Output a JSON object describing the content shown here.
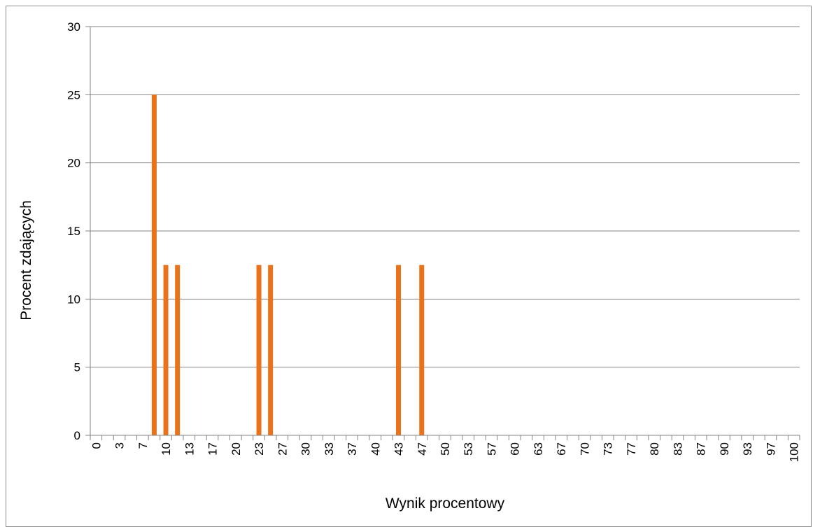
{
  "chart_data": {
    "type": "bar",
    "title": "",
    "xlabel": "Wynik procentowy",
    "ylabel": "Procent zdających",
    "ylim": [
      0,
      30
    ],
    "yticks": [
      0,
      5,
      10,
      15,
      20,
      25,
      30
    ],
    "grid": true,
    "legend": "none",
    "bar_color": "#E8731A",
    "gridline_color": "#868686",
    "categories": [
      "0",
      "3",
      "7",
      "10",
      "13",
      "17",
      "20",
      "23",
      "27",
      "30",
      "33",
      "37",
      "40",
      "43",
      "47",
      "50",
      "53",
      "57",
      "60",
      "63",
      "67",
      "70",
      "73",
      "77",
      "80",
      "83",
      "87",
      "90",
      "93",
      "97",
      "100"
    ],
    "bin_step": 1.666667,
    "series": [
      {
        "x": [
          5.0,
          6.67,
          8.33,
          10.0,
          11.67,
          13.33,
          15.0,
          16.67,
          18.33,
          20.0,
          21.67,
          23.33,
          25.0,
          26.67,
          28.33,
          30.0,
          31.67,
          33.33,
          35.0,
          36.67,
          38.33,
          40.0,
          41.67,
          43.33,
          45.0,
          46.67,
          48.33
        ],
        "values": [
          0,
          0,
          25,
          12.5,
          12.5,
          0,
          0,
          0,
          0,
          0,
          0,
          12.5,
          12.5,
          0,
          0,
          0,
          0,
          0,
          0,
          0,
          0,
          0,
          0,
          12.5,
          0,
          12.5,
          0
        ]
      }
    ]
  }
}
